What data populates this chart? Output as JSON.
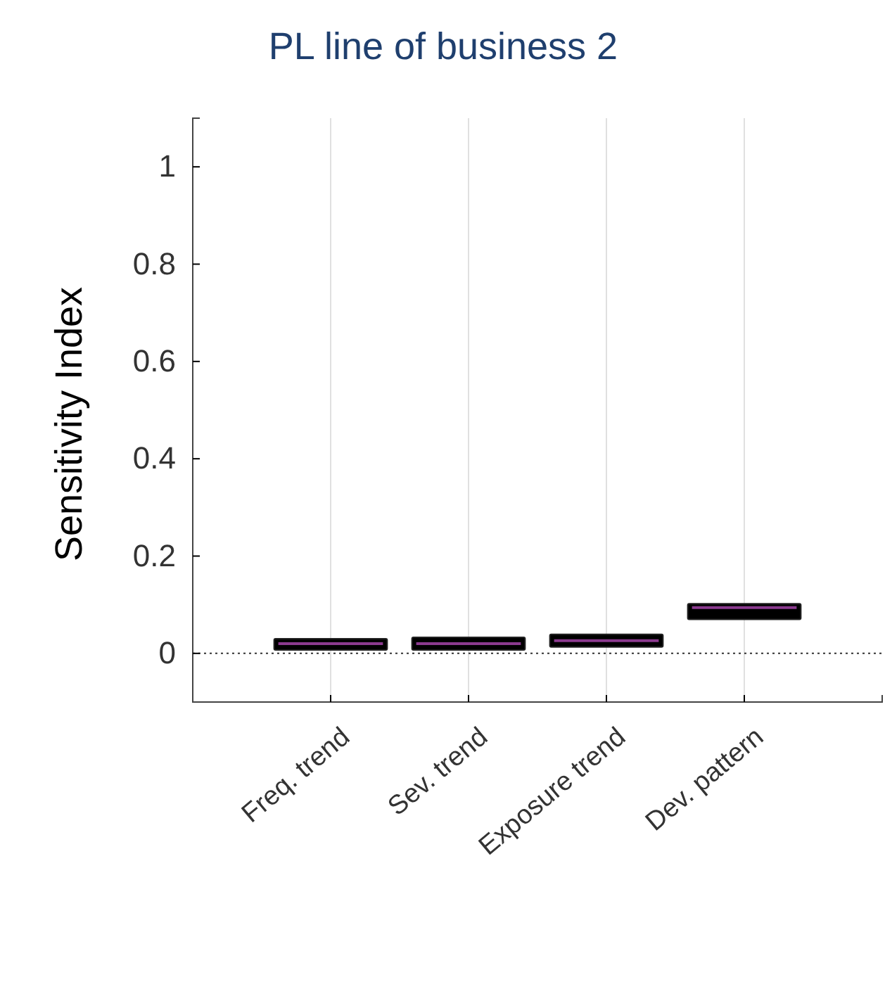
{
  "chart_data": {
    "type": "box",
    "title": "PL line of business 2",
    "ylabel": "Sensitivity Index",
    "categories": [
      "Freq. trend",
      "Sev. trend",
      "Exposure trend",
      "Dev. pattern"
    ],
    "boxes": [
      {
        "low": 0.007,
        "q1": 0.007,
        "median": 0.02,
        "q3": 0.03,
        "high": 0.03
      },
      {
        "low": 0.007,
        "q1": 0.007,
        "median": 0.02,
        "q3": 0.033,
        "high": 0.033
      },
      {
        "low": 0.013,
        "q1": 0.013,
        "median": 0.026,
        "q3": 0.039,
        "high": 0.039
      },
      {
        "low": 0.07,
        "q1": 0.07,
        "median": 0.094,
        "q3": 0.102,
        "high": 0.102
      }
    ],
    "color": "#000000",
    "ylim": [
      -0.1,
      1.1
    ],
    "yticks": [
      0,
      0.2,
      0.4,
      0.6,
      0.8,
      1
    ],
    "grid": "x",
    "ref_lines": [
      {
        "axis": "y",
        "value": 0,
        "line_style": "dotted",
        "color": "#333333"
      }
    ]
  }
}
